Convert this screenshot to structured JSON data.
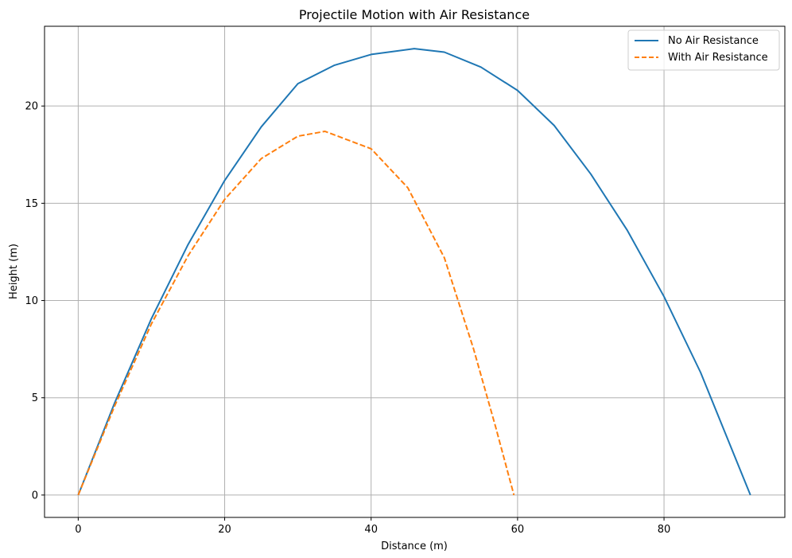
{
  "chart_data": {
    "type": "line",
    "title": "Projectile Motion with Air Resistance",
    "xlabel": "Distance (m)",
    "ylabel": "Height (m)",
    "xlim": [
      -4.6,
      96.5
    ],
    "ylim": [
      -1.15,
      24.1
    ],
    "xticks": [
      0,
      20,
      40,
      60,
      80
    ],
    "yticks": [
      0,
      5,
      10,
      15,
      20
    ],
    "grid": true,
    "legend_position": "top-right",
    "series": [
      {
        "name": "No Air Resistance",
        "color": "#1f77b4",
        "style": "solid",
        "x": [
          0,
          5,
          10,
          15,
          20,
          25,
          30,
          35,
          40,
          45.9,
          50,
          55,
          60,
          65,
          70,
          75,
          80,
          85,
          91.8
        ],
        "y": [
          0,
          4.76,
          9.07,
          12.88,
          16.17,
          18.93,
          21.15,
          22.1,
          22.65,
          22.95,
          22.77,
          22.0,
          20.8,
          19.0,
          16.5,
          13.6,
          10.2,
          6.3,
          0
        ]
      },
      {
        "name": "With Air Resistance",
        "color": "#ff7f0e",
        "style": "dashed",
        "x": [
          0,
          5,
          10,
          15,
          20,
          25,
          30,
          33.7,
          40,
          45,
          50,
          54,
          57,
          59.5
        ],
        "y": [
          0,
          4.6,
          8.8,
          12.3,
          15.2,
          17.3,
          18.45,
          18.7,
          17.8,
          15.8,
          12.2,
          7.5,
          3.5,
          0
        ]
      }
    ]
  }
}
